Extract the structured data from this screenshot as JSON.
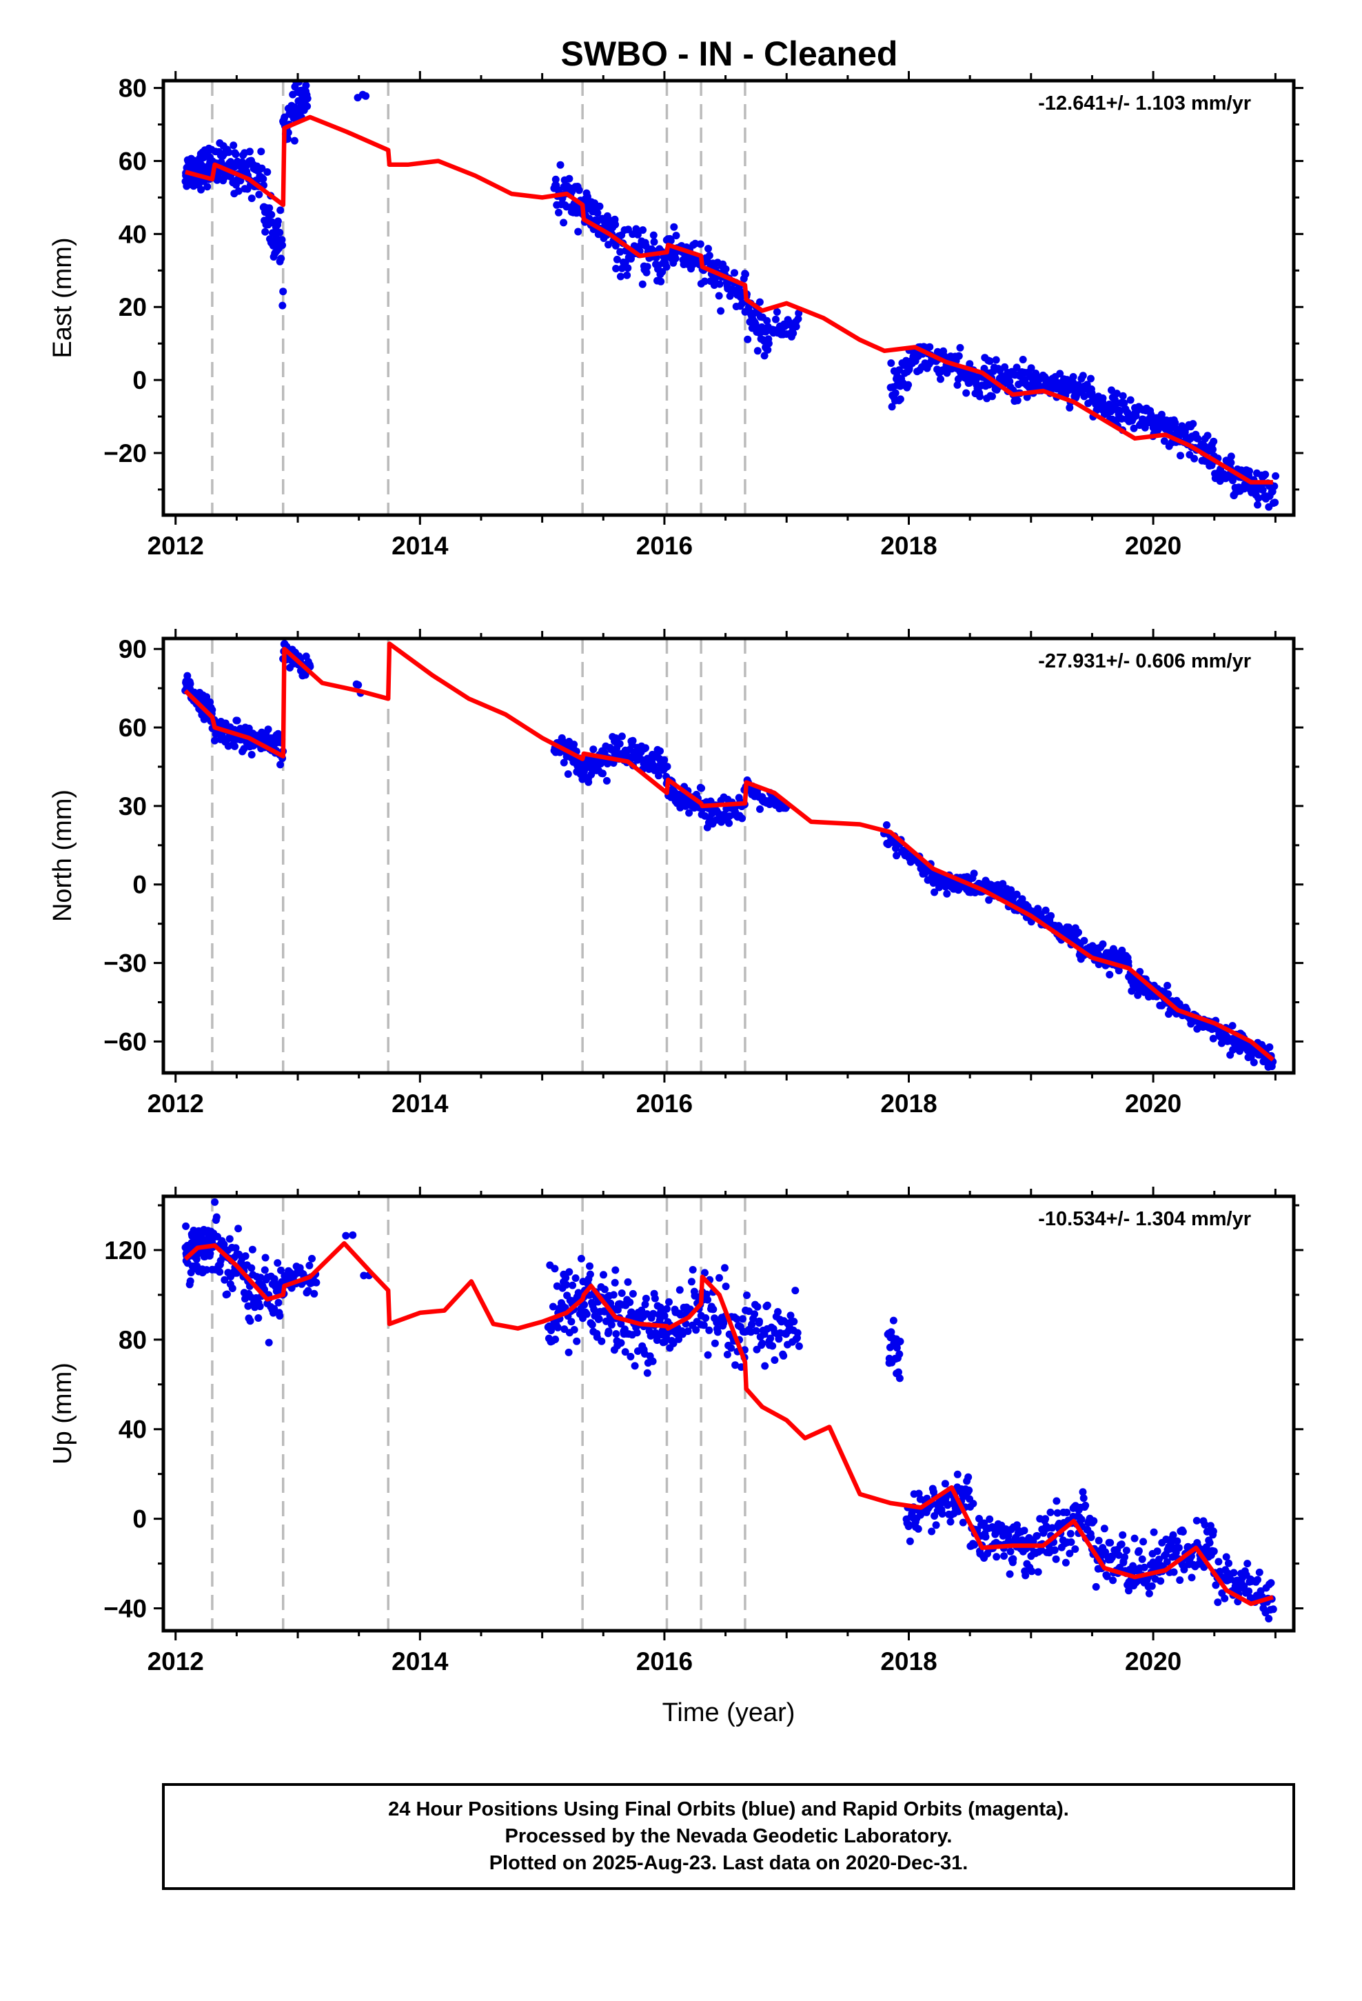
{
  "title": "SWBO  - IN - Cleaned",
  "colors": {
    "final": "#0000ee",
    "model": "#ff0000",
    "breaks": "#bbbbbb",
    "frame": "#000000"
  },
  "chart_data": [
    {
      "type": "scatter",
      "ylabel": "East (mm)",
      "xlabel": "",
      "rate": "-12.641+/- 1.103 mm/yr",
      "xlim": [
        2011.9,
        2021.15
      ],
      "ylim": [
        -37,
        82
      ],
      "xticks": [
        2012,
        2014,
        2016,
        2018,
        2020
      ],
      "yticks": [
        -20,
        0,
        20,
        40,
        60,
        80
      ],
      "breaks": [
        2012.3,
        2012.88,
        2013.74,
        2015.33,
        2016.02,
        2016.3,
        2016.66
      ],
      "clusters": [
        [
          2012.08,
          2012.3,
          57,
          59,
          2.5,
          90
        ],
        [
          2012.3,
          2012.72,
          59,
          56,
          3,
          100
        ],
        [
          2012.72,
          2012.88,
          48,
          34,
          4,
          45
        ],
        [
          2012.88,
          2013.08,
          69,
          78,
          3,
          50
        ],
        [
          2013.5,
          2013.56,
          77,
          77,
          1,
          3
        ],
        [
          2015.1,
          2015.33,
          51,
          49,
          3,
          45
        ],
        [
          2015.33,
          2015.6,
          47,
          39,
          3,
          50
        ],
        [
          2015.6,
          2016.02,
          36,
          32,
          3,
          70
        ],
        [
          2016.02,
          2016.3,
          37,
          33,
          3,
          45
        ],
        [
          2016.3,
          2016.66,
          31,
          23,
          3,
          55
        ],
        [
          2016.66,
          2016.85,
          20,
          11,
          3,
          40
        ],
        [
          2016.85,
          2017.1,
          13,
          16,
          2,
          30
        ],
        [
          2017.85,
          2018.0,
          -3,
          1,
          3,
          30
        ],
        [
          2018.0,
          2018.4,
          7,
          4,
          2,
          60
        ],
        [
          2018.4,
          2019.0,
          1,
          -1,
          2.5,
          110
        ],
        [
          2019.0,
          2019.5,
          0,
          -3,
          2,
          90
        ],
        [
          2019.5,
          2020.0,
          -6,
          -11,
          2,
          90
        ],
        [
          2020.0,
          2020.5,
          -13,
          -20,
          2.5,
          90
        ],
        [
          2020.5,
          2021.0,
          -24,
          -32,
          2.5,
          90
        ]
      ],
      "model": {
        "x": [
          2012.08,
          2012.3,
          2012.32,
          2012.6,
          2012.88,
          2012.89,
          2013.1,
          2013.4,
          2013.74,
          2013.75,
          2013.9,
          2014.15,
          2014.45,
          2014.75,
          2015.0,
          2015.2,
          2015.33,
          2015.34,
          2015.55,
          2015.8,
          2016.02,
          2016.03,
          2016.3,
          2016.31,
          2016.66,
          2016.67,
          2016.8,
          2017.0,
          2017.3,
          2017.6,
          2017.8,
          2018.05,
          2018.3,
          2018.6,
          2018.85,
          2019.1,
          2019.35,
          2019.6,
          2019.85,
          2020.1,
          2020.3,
          2020.6,
          2020.8,
          2020.98
        ],
        "y": [
          57,
          55,
          59,
          55,
          48,
          69,
          72,
          68,
          63,
          59,
          59,
          60,
          56,
          51,
          50,
          51,
          48,
          44,
          40,
          34,
          35,
          37,
          34,
          31,
          26,
          22,
          19,
          21,
          17,
          11,
          8,
          9,
          5,
          2,
          -4,
          -3,
          -6,
          -11,
          -16,
          -15,
          -18,
          -24,
          -28,
          -28
        ]
      }
    },
    {
      "type": "scatter",
      "ylabel": "North (mm)",
      "xlabel": "",
      "rate": "-27.931+/- 0.606 mm/yr",
      "xlim": [
        2011.9,
        2021.15
      ],
      "ylim": [
        -72,
        94
      ],
      "xticks": [
        2012,
        2014,
        2016,
        2018,
        2020
      ],
      "yticks": [
        -60,
        -30,
        0,
        30,
        60,
        90
      ],
      "breaks": [
        2012.3,
        2012.88,
        2013.74,
        2015.33,
        2016.02,
        2016.3,
        2016.66
      ],
      "clusters": [
        [
          2012.08,
          2012.3,
          76,
          65,
          2,
          70
        ],
        [
          2012.3,
          2012.88,
          60,
          52,
          2.5,
          120
        ],
        [
          2012.88,
          2013.1,
          89,
          82,
          2,
          50
        ],
        [
          2013.48,
          2013.52,
          76,
          76,
          1,
          3
        ],
        [
          2015.1,
          2015.33,
          54,
          47,
          2.5,
          45
        ],
        [
          2015.33,
          2015.6,
          44,
          50,
          3,
          50
        ],
        [
          2015.6,
          2016.02,
          52,
          44,
          3,
          70
        ],
        [
          2016.02,
          2016.3,
          37,
          31,
          2.5,
          40
        ],
        [
          2016.3,
          2016.66,
          29,
          28,
          3,
          50
        ],
        [
          2016.66,
          2017.0,
          37,
          28,
          2,
          45
        ],
        [
          2017.8,
          2018.2,
          19,
          3,
          2,
          50
        ],
        [
          2018.2,
          2018.8,
          2,
          -3,
          2,
          100
        ],
        [
          2018.8,
          2019.4,
          -5,
          -22,
          2,
          100
        ],
        [
          2019.4,
          2019.8,
          -26,
          -30,
          2,
          70
        ],
        [
          2019.8,
          2020.4,
          -36,
          -53,
          2,
          100
        ],
        [
          2020.4,
          2020.98,
          -53,
          -67,
          2,
          90
        ]
      ],
      "model": {
        "x": [
          2012.08,
          2012.3,
          2012.32,
          2012.6,
          2012.88,
          2012.89,
          2013.2,
          2013.5,
          2013.74,
          2013.75,
          2014.1,
          2014.4,
          2014.7,
          2015.0,
          2015.33,
          2015.34,
          2015.7,
          2016.02,
          2016.03,
          2016.3,
          2016.31,
          2016.66,
          2016.67,
          2016.9,
          2017.2,
          2017.6,
          2017.85,
          2018.2,
          2018.6,
          2019.0,
          2019.5,
          2019.8,
          2020.2,
          2020.5,
          2020.8,
          2020.98
        ],
        "y": [
          74,
          64,
          60,
          56,
          49,
          90,
          77,
          74,
          71,
          92,
          80,
          71,
          65,
          56,
          48,
          50,
          47,
          35,
          40,
          31,
          30,
          31,
          39,
          35,
          24,
          23,
          20,
          6,
          -2,
          -12,
          -28,
          -32,
          -48,
          -53,
          -60,
          -67
        ]
      }
    },
    {
      "type": "scatter",
      "ylabel": "Up (mm)",
      "xlabel": "Time (year)",
      "rate": "-10.534+/- 1.304 mm/yr",
      "xlim": [
        2011.9,
        2021.15
      ],
      "ylim": [
        -50,
        144
      ],
      "xticks": [
        2012,
        2014,
        2016,
        2018,
        2020
      ],
      "yticks": [
        -40,
        0,
        40,
        80,
        120
      ],
      "breaks": [
        2012.3,
        2012.88,
        2013.74,
        2015.33,
        2016.02,
        2016.3,
        2016.66
      ],
      "clusters": [
        [
          2012.08,
          2012.3,
          120,
          122,
          6,
          80
        ],
        [
          2012.3,
          2012.6,
          125,
          108,
          7,
          60
        ],
        [
          2012.6,
          2012.88,
          100,
          104,
          7,
          50
        ],
        [
          2012.88,
          2013.15,
          107,
          110,
          5,
          40
        ],
        [
          2013.4,
          2013.45,
          127,
          127,
          1,
          2
        ],
        [
          2013.54,
          2013.58,
          108,
          108,
          1,
          2
        ],
        [
          2015.05,
          2015.33,
          88,
          100,
          9,
          60
        ],
        [
          2015.33,
          2015.6,
          100,
          90,
          10,
          60
        ],
        [
          2015.6,
          2016.02,
          88,
          85,
          7,
          80
        ],
        [
          2016.02,
          2016.3,
          88,
          96,
          7,
          40
        ],
        [
          2016.3,
          2016.66,
          98,
          75,
          10,
          50
        ],
        [
          2016.66,
          2017.1,
          88,
          80,
          6,
          60
        ],
        [
          2017.83,
          2017.93,
          75,
          70,
          8,
          25
        ],
        [
          2017.98,
          2018.5,
          2,
          10,
          5,
          80
        ],
        [
          2018.5,
          2019.0,
          -5,
          -14,
          6,
          90
        ],
        [
          2019.0,
          2019.5,
          -12,
          0,
          6,
          80
        ],
        [
          2019.5,
          2020.0,
          -15,
          -25,
          6,
          80
        ],
        [
          2020.0,
          2020.5,
          -20,
          -12,
          6,
          80
        ],
        [
          2020.5,
          2020.98,
          -25,
          -35,
          6,
          70
        ]
      ],
      "model": {
        "x": [
          2012.08,
          2012.18,
          2012.32,
          2012.5,
          2012.75,
          2012.88,
          2012.89,
          2013.1,
          2013.38,
          2013.6,
          2013.74,
          2013.75,
          2014.0,
          2014.2,
          2014.42,
          2014.6,
          2014.8,
          2015.0,
          2015.2,
          2015.33,
          2015.34,
          2015.4,
          2015.6,
          2015.8,
          2016.02,
          2016.03,
          2016.2,
          2016.3,
          2016.31,
          2016.45,
          2016.66,
          2016.67,
          2016.8,
          2017.0,
          2017.15,
          2017.35,
          2017.6,
          2017.85,
          2018.1,
          2018.35,
          2018.6,
          2018.85,
          2019.1,
          2019.35,
          2019.6,
          2019.85,
          2020.1,
          2020.35,
          2020.6,
          2020.8,
          2020.98
        ],
        "y": [
          116,
          121,
          122,
          113,
          98,
          100,
          104,
          108,
          123,
          110,
          102,
          87,
          92,
          93,
          106,
          87,
          85,
          88,
          92,
          98,
          100,
          104,
          90,
          87,
          86,
          85,
          90,
          96,
          108,
          100,
          70,
          58,
          50,
          44,
          36,
          41,
          11,
          7,
          5,
          14,
          -13,
          -12,
          -12,
          -1,
          -22,
          -26,
          -23,
          -13,
          -32,
          -38,
          -35
        ]
      }
    }
  ],
  "footer": [
    "24 Hour Positions Using Final Orbits (blue) and Rapid Orbits (magenta).",
    "Processed by the Nevada Geodetic Laboratory.",
    "Plotted on 2025-Aug-23. Last data on 2020-Dec-31."
  ]
}
